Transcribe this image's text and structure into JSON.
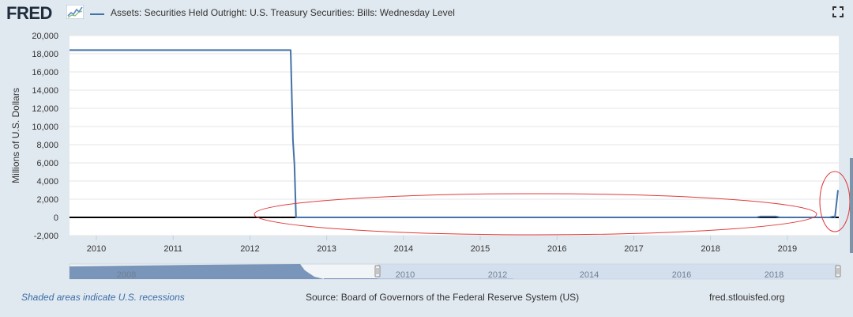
{
  "header": {
    "logo_text": "FRED",
    "series_title": "Assets: Securities Held Outright: U.S. Treasury Securities: Bills: Wednesday Level",
    "fullscreen_icon": "fullscreen-icon"
  },
  "footer": {
    "recession_note": "Shaded areas indicate U.S. recessions",
    "source": "Source: Board of Governors of the Federal Reserve System (US)",
    "site": "fred.stlouisfed.org"
  },
  "navigator": {
    "tick_labels": [
      "2008",
      "2010",
      "2012",
      "2014",
      "2016",
      "2018"
    ]
  },
  "colors": {
    "series": "#4572a7",
    "annotation": "#e03b3b",
    "background": "#e1e9f0",
    "plot": "#ffffff"
  },
  "chart_data": {
    "type": "line",
    "title": "Assets: Securities Held Outright: U.S. Treasury Securities: Bills: Wednesday Level",
    "xlabel": "",
    "ylabel": "Millions of U.S. Dollars",
    "xlim": [
      2009.65,
      2019.67
    ],
    "ylim": [
      -2000,
      20000
    ],
    "x_ticks": [
      "2010",
      "2011",
      "2012",
      "2013",
      "2014",
      "2015",
      "2016",
      "2017",
      "2018",
      "2019"
    ],
    "y_ticks": [
      "20,000",
      "18,000",
      "16,000",
      "14,000",
      "12,000",
      "10,000",
      "8,000",
      "6,000",
      "4,000",
      "2,000",
      "0",
      "-2,000"
    ],
    "grid": true,
    "legend": "top-left",
    "series": [
      {
        "x": [
          2009.65,
          2012.53,
          2012.56,
          2012.58,
          2012.6,
          2013.0,
          2018.6,
          2018.65,
          2018.85,
          2018.9,
          2019.55,
          2019.6,
          2019.62,
          2019.66
        ],
        "y": [
          18400,
          18400,
          8500,
          5800,
          0,
          0,
          0,
          100,
          100,
          0,
          0,
          100,
          0,
          3000
        ]
      }
    ],
    "reference_line_y": 0
  }
}
